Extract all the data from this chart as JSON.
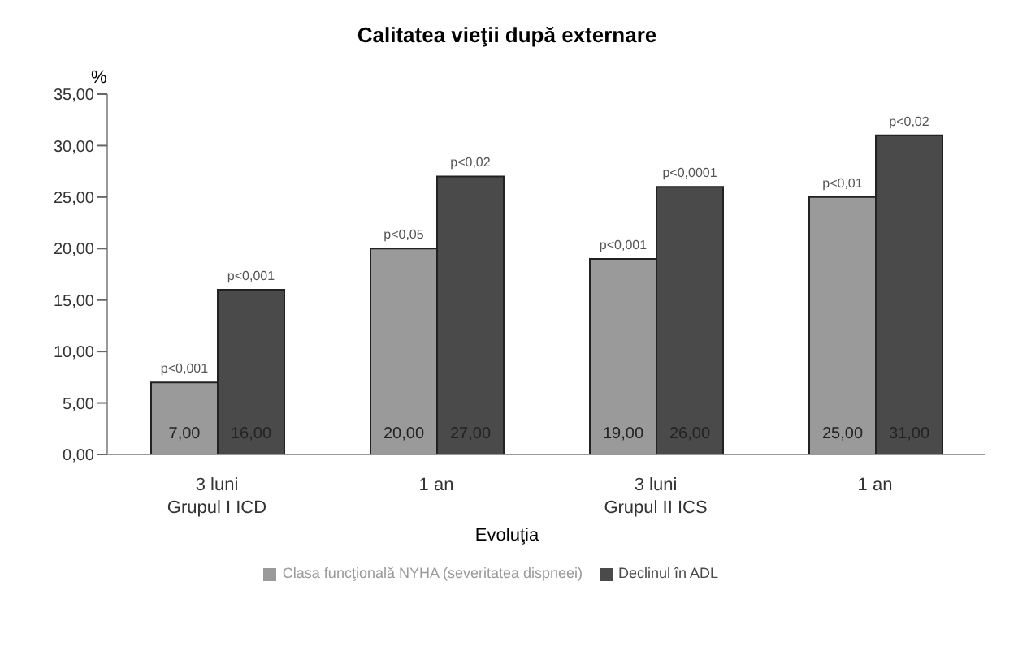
{
  "chart_data": {
    "type": "bar",
    "title": "Calitatea vieţii după externare",
    "xlabel": "Evoluţia",
    "ylabel": "%",
    "categories": [
      "3 luni\nGrupul I ICD",
      "1 an",
      "3 luni\nGrupul II ICS",
      "1 an"
    ],
    "series": [
      {
        "name": "Clasa funcţională NYHA (severitatea dispneei)",
        "color": "#9a9a9a",
        "values": [
          7,
          20,
          19,
          25
        ],
        "value_labels": [
          "7,00",
          "20,00",
          "19,00",
          "25,00"
        ]
      },
      {
        "name": "Declinul în ADL",
        "color": "#4a4a4a",
        "values": [
          16,
          27,
          26,
          31
        ],
        "value_labels": [
          "16,00",
          "27,00",
          "26,00",
          "31,00"
        ]
      }
    ],
    "annotations": [
      "p<0,001",
      "p<0,001",
      "p<0,05",
      "p<0,02",
      "p<0,001",
      "p<0,0001",
      "p<0,01",
      "p<0,02"
    ],
    "ylim": [
      0,
      35
    ],
    "yticks": [
      {
        "value": 0,
        "label": "0,00"
      },
      {
        "value": 5,
        "label": "5,00"
      },
      {
        "value": 10,
        "label": "10,00"
      },
      {
        "value": 15,
        "label": "15,00"
      },
      {
        "value": 20,
        "label": "20,00"
      },
      {
        "value": 25,
        "label": "25,00"
      },
      {
        "value": 30,
        "label": "30,00"
      },
      {
        "value": 35,
        "label": "35,00"
      }
    ],
    "legend": "bottom"
  }
}
